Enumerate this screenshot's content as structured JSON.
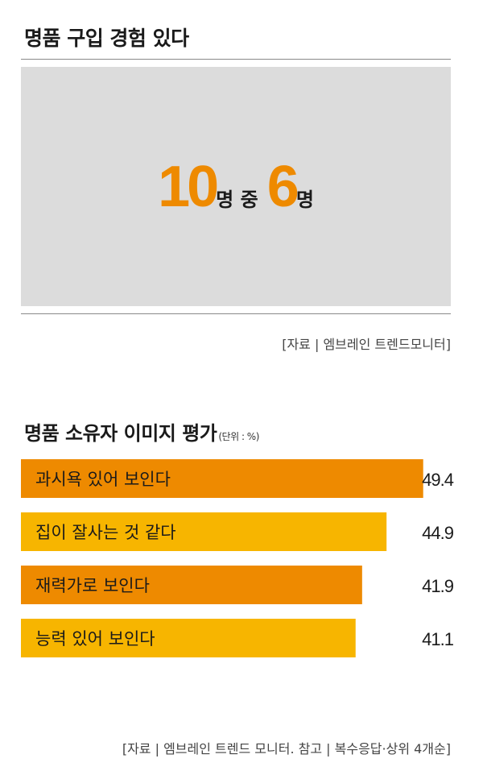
{
  "section1": {
    "title": "명품 구입 경험 있다",
    "stat": {
      "total": "10",
      "total_unit": "명 중",
      "count": "6",
      "count_unit": "명"
    },
    "source": "[자료 | 엠브레인 트렌드모니터]"
  },
  "section2": {
    "title": "명품 소유자 이미지 평가",
    "unit_note": "(단위 : %)",
    "source": "[자료 | 엠브레인 트렌드 모니터. 참고 | 복수응답·상위 4개순]"
  },
  "colors": {
    "orange": "#ee8a00",
    "yellow": "#f7b500",
    "gray_panel": "#dcdcdc"
  },
  "chart_data": {
    "type": "bar",
    "orientation": "horizontal",
    "categories": [
      "과시욕 있어 보인다",
      "집이 잘사는 것 같다",
      "재력가로 보인다",
      "능력 있어 보인다"
    ],
    "values": [
      49.4,
      44.9,
      41.9,
      41.1
    ],
    "value_labels": [
      "49.4",
      "44.9",
      "41.9",
      "41.1"
    ],
    "bar_colors": [
      "#ee8a00",
      "#f7b500",
      "#ee8a00",
      "#f7b500"
    ],
    "xlim": [
      0,
      52
    ]
  }
}
